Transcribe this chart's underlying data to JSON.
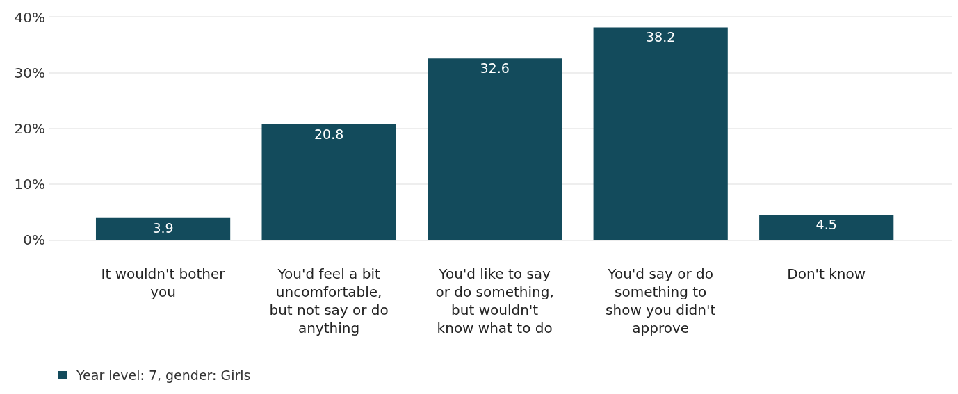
{
  "chart_data": {
    "type": "bar",
    "categories": [
      "It wouldn't bother\nyou",
      "You'd feel a bit\nuncomfortable,\nbut not say or do\nanything",
      "You'd like to say\nor do something,\nbut wouldn't\nknow what to do",
      "You'd say or do\nsomething to\nshow you didn't\napprove",
      "Don't know"
    ],
    "series": [
      {
        "name": "Year level: 7, gender: Girls",
        "color": "#134b5c",
        "values": [
          3.9,
          20.8,
          32.6,
          38.2,
          4.5
        ]
      }
    ],
    "ylim": [
      0,
      40
    ],
    "yticks": [
      {
        "value": 0,
        "label": "0%"
      },
      {
        "value": 10,
        "label": "10%"
      },
      {
        "value": 20,
        "label": "20%"
      },
      {
        "value": 30,
        "label": "30%"
      },
      {
        "value": 40,
        "label": "40%"
      }
    ],
    "grid": "y",
    "legend": "bottom left",
    "data_labels": true
  }
}
